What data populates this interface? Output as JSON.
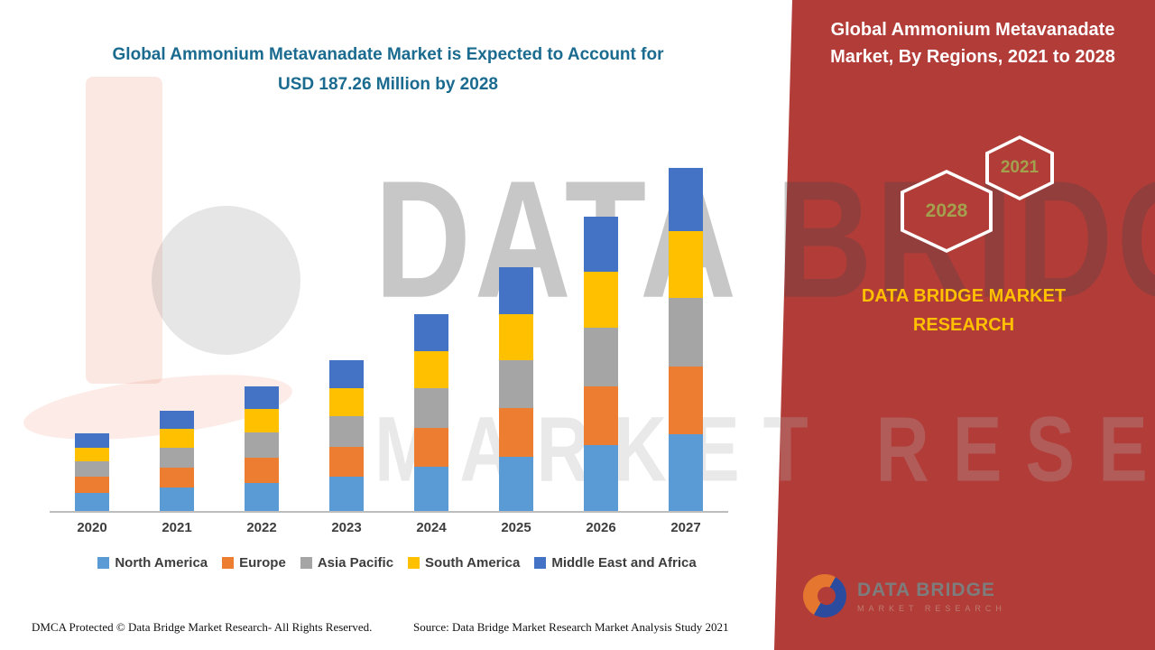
{
  "left": {
    "title": "Global Ammonium Metavanadate Market is Expected to Account for USD 187.26 Million by 2028"
  },
  "right_panel": {
    "title": "Global Ammonium Metavanadate Market, By Regions, 2021 to 2028",
    "hexagon_back_year": "2028",
    "hexagon_front_year": "2021",
    "brand": "DATA BRIDGE MARKET RESEARCH",
    "background_color": "#B23C38",
    "accent_color": "#FFC000",
    "year_color": "#A3A04E"
  },
  "watermark": {
    "line1": "DATA BRIDGE",
    "line2": "MARKET RESEARCH"
  },
  "logo": {
    "name": "DATA BRIDGE",
    "subtitle": "MARKET RESEARCH"
  },
  "footer": {
    "dmca": "DMCA Protected © Data Bridge Market Research- All Rights Reserved.",
    "source": "Source: Data Bridge Market Research Market Analysis Study 2021"
  },
  "chart_data": {
    "type": "bar",
    "stacked": true,
    "title": "Global Ammonium Metavanadate Market, By Regions, 2021 to 2028",
    "unit": "USD Million",
    "categories": [
      "2020",
      "2021",
      "2022",
      "2023",
      "2024",
      "2025",
      "2026",
      "2027"
    ],
    "series": [
      {
        "name": "North America",
        "color": "#5B9BD5",
        "values": [
          9,
          11.5,
          14,
          17,
          22,
          27,
          33,
          38
        ]
      },
      {
        "name": "Europe",
        "color": "#ED7D31",
        "values": [
          8,
          10,
          12.5,
          15,
          19.5,
          24,
          29,
          34
        ]
      },
      {
        "name": "Asia Pacific",
        "color": "#A5A5A5",
        "values": [
          7.5,
          10,
          12.5,
          15,
          19.5,
          24,
          29,
          34
        ]
      },
      {
        "name": "South America",
        "color": "#FFC000",
        "values": [
          7,
          9.5,
          11.5,
          14,
          18.5,
          23,
          28,
          33
        ]
      },
      {
        "name": "Middle East and Africa",
        "color": "#4472C4",
        "values": [
          7,
          9,
          11.5,
          14,
          18.5,
          23,
          27.5,
          31.5
        ]
      }
    ],
    "ylim": [
      0,
      175
    ],
    "grid": false,
    "legend_position": "bottom"
  }
}
